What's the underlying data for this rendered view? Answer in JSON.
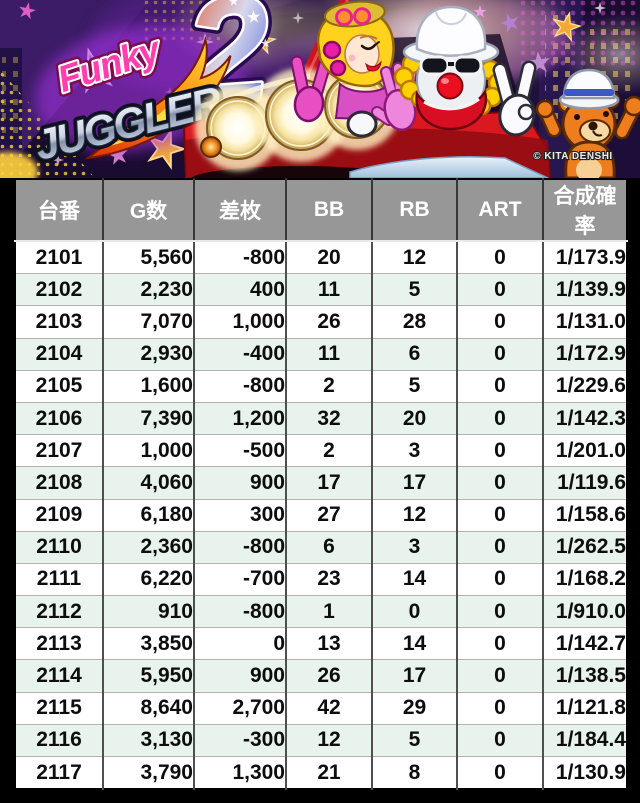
{
  "banner": {
    "logo_funky": "Funky",
    "logo_juggler": "JUGGLER",
    "logo_number": "2",
    "copyright": "© KITA DENSHI"
  },
  "colors": {
    "page_bg": "#000000",
    "header_bg": "#979797",
    "header_text": "#ffffff",
    "row_bg": "#ffffff",
    "row_alt_bg": "#e9f3ee",
    "cell_text": "#0d0d0d",
    "banner_bg": "#1a0b30",
    "car_red": "#d9191f",
    "star_gold": "#f3a838"
  },
  "table": {
    "columns": [
      {
        "key": "dai",
        "label": "台番",
        "align": "center"
      },
      {
        "key": "g",
        "label": "G数",
        "align": "right"
      },
      {
        "key": "sa",
        "label": "差枚",
        "align": "right"
      },
      {
        "key": "bb",
        "label": "BB",
        "align": "center"
      },
      {
        "key": "rb",
        "label": "RB",
        "align": "center"
      },
      {
        "key": "art",
        "label": "ART",
        "align": "center"
      },
      {
        "key": "prob",
        "label": "合成確率",
        "align": "right"
      }
    ],
    "rows": [
      [
        "2101",
        "5,560",
        "-800",
        "20",
        "12",
        "0",
        "1/173.9"
      ],
      [
        "2102",
        "2,230",
        "400",
        "11",
        "5",
        "0",
        "1/139.9"
      ],
      [
        "2103",
        "7,070",
        "1,000",
        "26",
        "28",
        "0",
        "1/131.0"
      ],
      [
        "2104",
        "2,930",
        "-400",
        "11",
        "6",
        "0",
        "1/172.9"
      ],
      [
        "2105",
        "1,600",
        "-800",
        "2",
        "5",
        "0",
        "1/229.6"
      ],
      [
        "2106",
        "7,390",
        "1,200",
        "32",
        "20",
        "0",
        "1/142.3"
      ],
      [
        "2107",
        "1,000",
        "-500",
        "2",
        "3",
        "0",
        "1/201.0"
      ],
      [
        "2108",
        "4,060",
        "900",
        "17",
        "17",
        "0",
        "1/119.6"
      ],
      [
        "2109",
        "6,180",
        "300",
        "27",
        "12",
        "0",
        "1/158.6"
      ],
      [
        "2110",
        "2,360",
        "-800",
        "6",
        "3",
        "0",
        "1/262.5"
      ],
      [
        "2111",
        "6,220",
        "-700",
        "23",
        "14",
        "0",
        "1/168.2"
      ],
      [
        "2112",
        "910",
        "-800",
        "1",
        "0",
        "0",
        "1/910.0"
      ],
      [
        "2113",
        "3,850",
        "0",
        "13",
        "14",
        "0",
        "1/142.7"
      ],
      [
        "2114",
        "5,950",
        "900",
        "26",
        "17",
        "0",
        "1/138.5"
      ],
      [
        "2115",
        "8,640",
        "2,700",
        "42",
        "29",
        "0",
        "1/121.8"
      ],
      [
        "2116",
        "3,130",
        "-300",
        "12",
        "5",
        "0",
        "1/184.4"
      ],
      [
        "2117",
        "3,790",
        "1,300",
        "21",
        "8",
        "0",
        "1/130.9"
      ]
    ]
  }
}
